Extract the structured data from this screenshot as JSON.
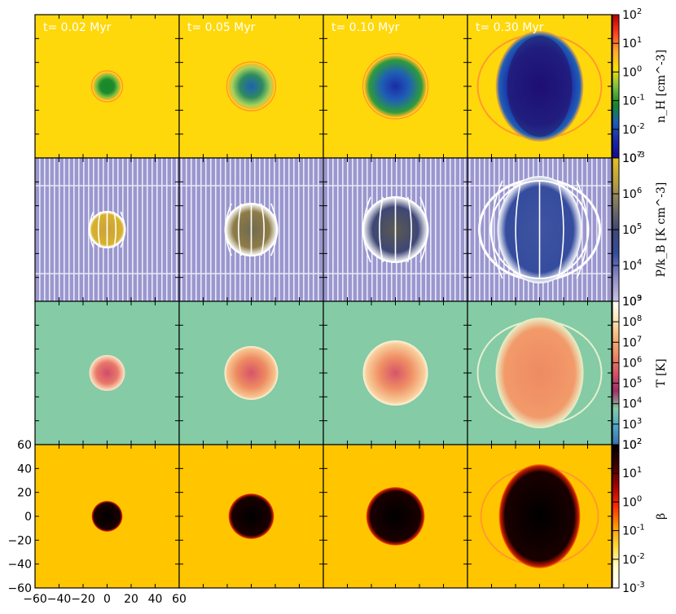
{
  "chart_data": {
    "type": "heatmap",
    "title": "",
    "columns": [
      {
        "time_label": "t= 0.02 Myr"
      },
      {
        "time_label": "t= 0.05 Myr"
      },
      {
        "time_label": "t= 0.10 Myr"
      },
      {
        "time_label": "t= 0.30 Myr"
      }
    ],
    "rows": [
      {
        "quantity": "density",
        "colorbar_label": "n_H [cm^-3]",
        "colorbar_ticks": [
          "10^2",
          "10^1",
          "10^0",
          "10^-1",
          "10^-2",
          "10^-3"
        ],
        "background_color": "#FFD80C",
        "colormap": [
          "#b30000",
          "#ff3b1f",
          "#ffa52c",
          "#ffe100",
          "#7dc141",
          "#138b25",
          "#1f5fb5",
          "#1b2ba8",
          "#140a8e"
        ],
        "bubble_radius": [
          17,
          28,
          38,
          62
        ]
      },
      {
        "quantity": "pressure",
        "colorbar_label": "P/k_B [K cm^-3]",
        "colorbar_ticks": [
          "10^7",
          "10^6",
          "10^5",
          "10^4",
          "10^3"
        ],
        "background_color": "#9a97cf",
        "colormap": [
          "#e8c021",
          "#b9a041",
          "#7a7463",
          "#3e4776",
          "#354c9e",
          "#8f8cc6",
          "#c7c4e5"
        ],
        "bubble_radius": [
          22,
          32,
          40,
          60
        ]
      },
      {
        "quantity": "temperature",
        "colorbar_label": "T [K]",
        "colorbar_ticks": [
          "10^9",
          "10^8",
          "10^7",
          "10^6",
          "10^5",
          "10^4",
          "10^3",
          "10^2"
        ],
        "background_color": "#84cba6",
        "colormap": [
          "#ffffff",
          "#fbe7b8",
          "#f6b67d",
          "#ee8a62",
          "#d65467",
          "#a12f68",
          "#84cba6",
          "#4ea6c5",
          "#3b6fb0"
        ],
        "bubble_radius": [
          22,
          33,
          40,
          62
        ]
      },
      {
        "quantity": "beta",
        "colorbar_label": "β",
        "colorbar_ticks": [
          "10^2",
          "10^1",
          "10^0",
          "10^-1",
          "10^-2",
          "10^-3"
        ],
        "background_color": "#ffc600",
        "colormap": [
          "#000000",
          "#3d0000",
          "#a40000",
          "#ff2a00",
          "#ff9900",
          "#ffdb3b",
          "#ffffd2",
          "#ffffff"
        ],
        "bubble_radius": [
          19,
          28,
          36,
          58
        ]
      }
    ],
    "x_axis": {
      "ticks": [
        "−60",
        "−40",
        "−20",
        "0",
        "20",
        "40",
        "60"
      ],
      "range": [
        -60,
        60
      ],
      "xlabel": ""
    },
    "y_axis": {
      "ticks": [
        "60",
        "40",
        "20",
        "0",
        "−20",
        "−40",
        "−60"
      ],
      "range": [
        -60,
        60
      ],
      "ylabel": ""
    }
  }
}
